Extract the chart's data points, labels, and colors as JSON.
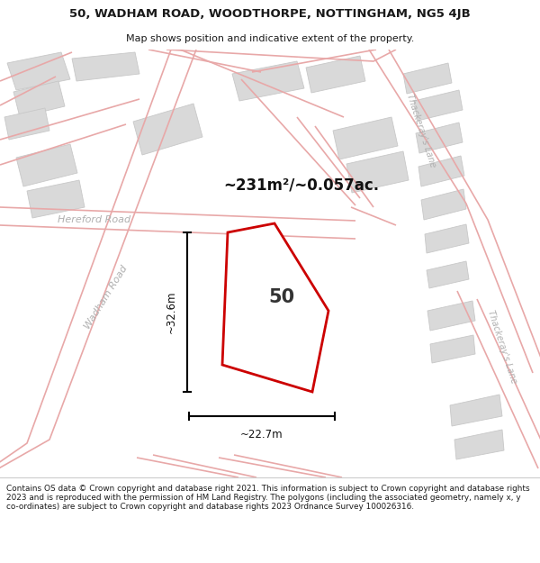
{
  "title_line1": "50, WADHAM ROAD, WOODTHORPE, NOTTINGHAM, NG5 4JB",
  "title_line2": "Map shows position and indicative extent of the property.",
  "footer_text": "Contains OS data © Crown copyright and database right 2021. This information is subject to Crown copyright and database rights 2023 and is reproduced with the permission of HM Land Registry. The polygons (including the associated geometry, namely x, y co-ordinates) are subject to Crown copyright and database rights 2023 Ordnance Survey 100026316.",
  "area_label": "~231m²/~0.057ac.",
  "dim_vertical": "~32.6m",
  "dim_horizontal": "~22.7m",
  "property_number": "50",
  "map_bg": "#f7f7f7",
  "road_line_color": "#e8a8a8",
  "building_face": "#d9d9d9",
  "building_edge": "#c8c8c8",
  "property_color": "#cc0000",
  "road_label_color": "#b0b0b0",
  "title_color": "#1a1a1a",
  "footer_color": "#1a1a1a"
}
